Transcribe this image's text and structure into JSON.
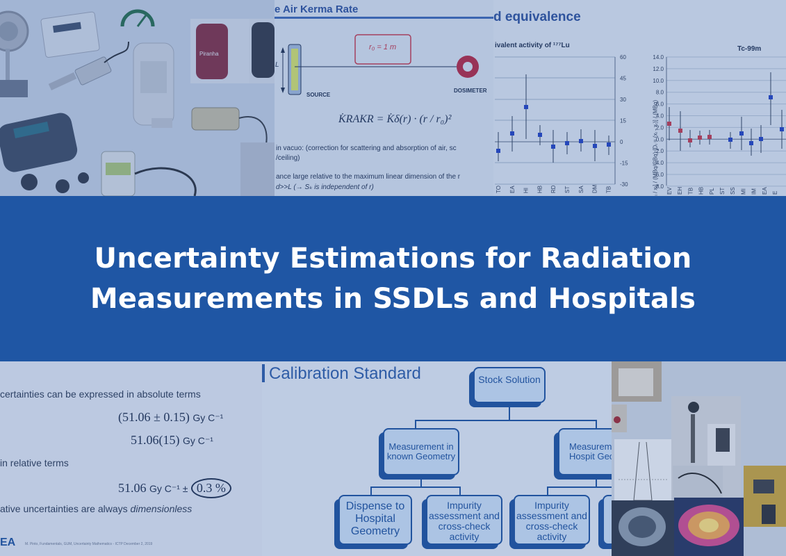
{
  "banner": {
    "title_line1": "Uncertainty Estimations for Radiation",
    "title_line2": "Measurements in SSDLs and Hospitals"
  },
  "top_center_slide": {
    "heading": "e Air Kerma Rate",
    "r0_label": "r₀ = 1 m",
    "source_label": "SOURCE",
    "dosimeter_label": "DOSIMETER",
    "L_label": "L",
    "formula": "K̇RAKR = K̇δ(r) · (r / r₀)²",
    "line1": "in vacuo: (correction for scattering and absorption of air, sc",
    "line2": "/ceiling)",
    "line3": "ance large relative to the maximum linear dimension of the r",
    "line4": "d>>L (→ Sₖ is independent of r)"
  },
  "right_chart_1": {
    "heading": "d equivalence",
    "title": "ivalent activity of ¹⁷⁷Lu",
    "y_ticks": [
      "60",
      "45",
      "30",
      "15",
      "0",
      "-15",
      "-30"
    ],
    "x_ticks": [
      "TO",
      "EA",
      "HI",
      "HB",
      "RD",
      "ST",
      "SA",
      "DM",
      "TB"
    ]
  },
  "right_chart_2": {
    "title": "Tc-99m",
    "y_ticks": [
      "14.0",
      "12.0",
      "10.0",
      "8.0",
      "6.0",
      "4.0",
      "2.0",
      "0.0",
      "-2.0",
      "-4.0",
      "-6.0",
      "-8.0"
    ],
    "y_label": "[Dᵢ / xᵣ] / (MBq/GBq)  [Dᵢ = (xᵢ - xᵣ)] / (MBq)",
    "x_ticks": [
      "EV",
      "EH",
      "TB",
      "HB",
      "PL",
      "ST",
      "SS",
      "MI",
      "IM",
      "EA",
      "E"
    ]
  },
  "bottom_left_slide": {
    "line1": "certainties can be expressed in absolute terms",
    "eq1_value": "(51.06 ± 0.15)",
    "eq1_unit": "Gy C⁻¹",
    "eq2_value": "51.06(15)",
    "eq2_unit": "Gy C⁻¹",
    "line2": "in relative terms",
    "eq3_value": "51.06",
    "eq3_unit": "Gy C⁻¹ ±",
    "eq3_percent": "0.3 %",
    "line3_prefix": "ative uncertainties are always ",
    "line3_italic": "dimensionless",
    "footer": "M. Pinto, Fundamentals, GUM, Uncertainty Mathematics - ICTP December 2, 2019",
    "logo": "EA"
  },
  "bottom_center_slide": {
    "heading": "Calibration Standard",
    "stock": "Stock Solution",
    "measurement_known": "Measurement in known Geometry",
    "measurement_hospital": "Measurem in Hospit Geomet",
    "dispense": "Dispense to Hospital Geometry",
    "impurity1": "Impurity assessment and cross-check activity",
    "impurity2": "Impurity assessment and cross-check activity"
  },
  "top_left_photos": {
    "piranha_label": "Piranha"
  },
  "colors": {
    "banner": "#1f56a4",
    "accent": "#1b4f9b"
  }
}
